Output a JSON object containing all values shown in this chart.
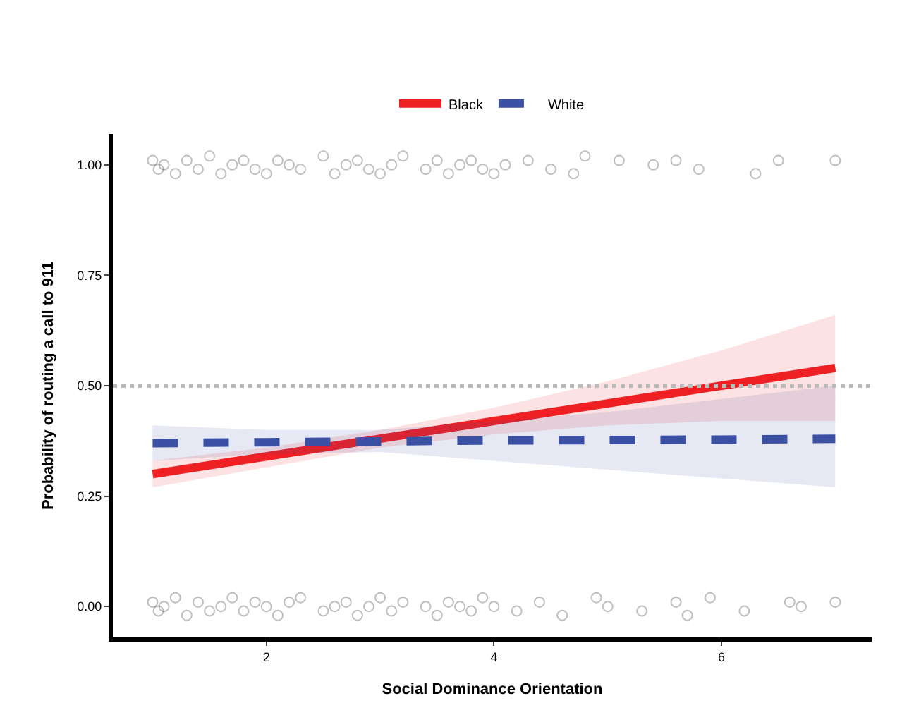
{
  "chart_data": {
    "type": "line",
    "xlabel": "Social Dominance Orientation",
    "ylabel": "Probability of routing a call to 911",
    "x": [
      1,
      2,
      3,
      4,
      5,
      6,
      7
    ],
    "series": [
      {
        "type": "scatter",
        "marker": "circle",
        "color": "#000000",
        "x": [
          1.0,
          1.05,
          1.1,
          1.2,
          1.3,
          1.4,
          1.5,
          1.6,
          1.7,
          1.8,
          1.9,
          2.0,
          2.1,
          2.2,
          2.3,
          2.5,
          2.6,
          2.7,
          2.8,
          2.9,
          3.0,
          3.1,
          3.2,
          3.4,
          3.5,
          3.6,
          3.7,
          3.8,
          3.9,
          4.0,
          4.1,
          4.3,
          4.5,
          4.7,
          4.8,
          5.1,
          5.4,
          5.6,
          5.8,
          6.3,
          6.5,
          7.0,
          1.0,
          1.05,
          1.1,
          1.2,
          1.3,
          1.4,
          1.5,
          1.6,
          1.7,
          1.8,
          1.9,
          2.0,
          2.1,
          2.2,
          2.3,
          2.5,
          2.6,
          2.7,
          2.8,
          2.9,
          3.0,
          3.1,
          3.2,
          3.4,
          3.5,
          3.6,
          3.7,
          3.8,
          3.9,
          4.0,
          4.2,
          4.4,
          4.6,
          4.9,
          5.0,
          5.3,
          5.6,
          5.7,
          5.9,
          6.2,
          6.6,
          6.7,
          7.0
        ],
        "values": [
          1.01,
          0.99,
          1.0,
          0.98,
          1.01,
          0.99,
          1.02,
          0.98,
          1.0,
          1.01,
          0.99,
          0.98,
          1.01,
          1.0,
          0.99,
          1.02,
          0.98,
          1.0,
          1.01,
          0.99,
          0.98,
          1.0,
          1.02,
          0.99,
          1.01,
          0.98,
          1.0,
          1.01,
          0.99,
          0.98,
          1.0,
          1.01,
          0.99,
          0.98,
          1.02,
          1.01,
          1.0,
          1.01,
          0.99,
          0.98,
          1.01,
          1.01,
          0.01,
          -0.01,
          0.0,
          0.02,
          -0.02,
          0.01,
          -0.01,
          0.0,
          0.02,
          -0.01,
          0.01,
          0.0,
          -0.02,
          0.01,
          0.02,
          -0.01,
          0.0,
          0.01,
          -0.02,
          0.0,
          0.02,
          -0.01,
          0.01,
          0.0,
          -0.02,
          0.01,
          0.0,
          -0.01,
          0.02,
          0.0,
          -0.01,
          0.01,
          -0.02,
          0.02,
          0.0,
          -0.01,
          0.01,
          -0.02,
          0.02,
          -0.01,
          0.01,
          0.0,
          0.01
        ]
      },
      {
        "name": "Black",
        "color": "#ee2024",
        "line_style": "solid",
        "values": [
          0.3,
          0.34,
          0.38,
          0.42,
          0.46,
          0.5,
          0.54
        ],
        "lower": [
          0.27,
          0.315,
          0.36,
          0.39,
          0.41,
          0.42,
          0.42
        ],
        "upper": [
          0.33,
          0.36,
          0.4,
          0.45,
          0.51,
          0.58,
          0.66
        ]
      },
      {
        "name": "White",
        "color": "#3b4fa3",
        "line_style": "dashed",
        "values": [
          0.37,
          0.372,
          0.374,
          0.376,
          0.377,
          0.378,
          0.38
        ],
        "lower": [
          0.33,
          0.345,
          0.35,
          0.33,
          0.31,
          0.29,
          0.27
        ],
        "upper": [
          0.41,
          0.4,
          0.4,
          0.42,
          0.44,
          0.47,
          0.5
        ]
      }
    ],
    "ref_lines": [
      {
        "axis": "y",
        "value": 0.5,
        "color": "#bbbbbb",
        "line_style": "dotted"
      }
    ],
    "xlim": [
      0.65,
      7.32
    ],
    "xticks": [
      2,
      4,
      6
    ],
    "ylim": [
      -0.07,
      1.07
    ],
    "yticks": [
      {
        "value": 0,
        "label": "0.00"
      },
      {
        "value": 0.25,
        "label": "0.25"
      },
      {
        "value": 0.5,
        "label": "0.50"
      },
      {
        "value": 0.75,
        "label": "0.75"
      },
      {
        "value": 1,
        "label": "1.00"
      }
    ],
    "legend": "top"
  }
}
